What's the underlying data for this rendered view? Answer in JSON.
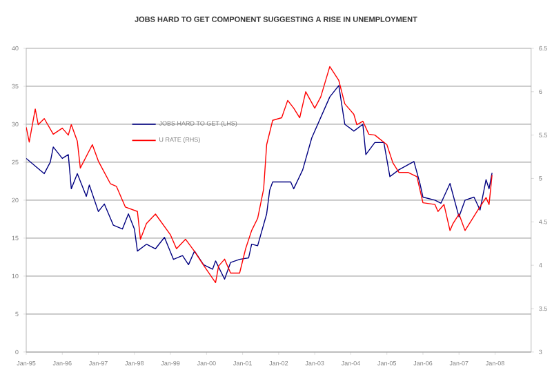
{
  "chart_data": {
    "type": "line",
    "title": "JOBS HARD TO GET COMPONENT SUGGESTING A RISE  IN UNEMPLOYMENT",
    "xlim": [
      "1995-01",
      "2009-01"
    ],
    "xticks": [
      {
        "value": "1995-01",
        "label": "Jan-95"
      },
      {
        "value": "1996-01",
        "label": "Jan-96"
      },
      {
        "value": "1997-01",
        "label": "Jan-97"
      },
      {
        "value": "1998-01",
        "label": "Jan-98"
      },
      {
        "value": "1999-01",
        "label": "Jan-99"
      },
      {
        "value": "2000-01",
        "label": "Jan-00"
      },
      {
        "value": "2001-01",
        "label": "Jan-01"
      },
      {
        "value": "2002-01",
        "label": "Jan-02"
      },
      {
        "value": "2003-01",
        "label": "Jan-03"
      },
      {
        "value": "2004-01",
        "label": "Jan-04"
      },
      {
        "value": "2005-01",
        "label": "Jan-05"
      },
      {
        "value": "2006-01",
        "label": "Jan-06"
      },
      {
        "value": "2007-01",
        "label": "Jan-07"
      },
      {
        "value": "2008-01",
        "label": "Jan-08"
      }
    ],
    "ylim": [
      0,
      40
    ],
    "yticks": [
      0,
      5,
      10,
      15,
      20,
      25,
      30,
      35,
      40
    ],
    "y2lim": [
      3,
      6.5
    ],
    "y2ticks": [
      3,
      3.5,
      4,
      4.5,
      5,
      5.5,
      6,
      6.5
    ],
    "grid": "y",
    "legend": "top left",
    "series": [
      {
        "name": "JOBS HARD TO GET (LHS)",
        "color": "#000080",
        "x": [
          "1995-01",
          "1995-04",
          "1995-07",
          "1995-09",
          "1995-10",
          "1996-01",
          "1996-03",
          "1996-04",
          "1996-06",
          "1996-09",
          "1996-10",
          "1997-01",
          "1997-03",
          "1997-06",
          "1997-09",
          "1997-11",
          "1998-01",
          "1998-02",
          "1998-05",
          "1998-08",
          "1998-11",
          "1999-02",
          "1999-05",
          "1999-07",
          "1999-09",
          "1999-12",
          "2000-03",
          "2000-04",
          "2000-07",
          "2000-09",
          "2000-12",
          "2001-03",
          "2001-04",
          "2001-06",
          "2001-09",
          "2001-10",
          "2001-11",
          "2002-05",
          "2002-06",
          "2002-09",
          "2002-12",
          "2003-03",
          "2003-06",
          "2003-09",
          "2003-11",
          "2004-02",
          "2004-05",
          "2004-06",
          "2004-09",
          "2004-12",
          "2005-02",
          "2005-05",
          "2005-10",
          "2005-12",
          "2006-01",
          "2006-05",
          "2006-07",
          "2006-10",
          "2007-01",
          "2007-03",
          "2007-06",
          "2007-08",
          "2007-10",
          "2007-11",
          "2007-12"
        ],
        "values": [
          25.5,
          24.5,
          23.5,
          25,
          27,
          25.5,
          26,
          21.5,
          23.5,
          20.5,
          22,
          18.5,
          19.5,
          16.7,
          16.2,
          18.2,
          16.2,
          13.3,
          14.2,
          13.6,
          15.1,
          12.2,
          12.7,
          11.5,
          13.3,
          11.5,
          10.9,
          12,
          9.6,
          11.8,
          12.2,
          12.4,
          14.2,
          14,
          18.2,
          21.3,
          22.4,
          22.4,
          21.5,
          24,
          28.2,
          30.9,
          33.6,
          35.1,
          30,
          29.1,
          30,
          26,
          27.6,
          27.6,
          23.1,
          24,
          25.1,
          22.2,
          20.4,
          20,
          19.6,
          22.2,
          17.8,
          20,
          20.4,
          18.7,
          22.7,
          21.5,
          23.6
        ]
      },
      {
        "name": "U RATE (RHS)",
        "color": "#ff0000",
        "axis": "y2",
        "x": [
          "1995-01",
          "1995-02",
          "1995-04",
          "1995-05",
          "1995-07",
          "1995-10",
          "1996-01",
          "1996-03",
          "1996-04",
          "1996-06",
          "1996-07",
          "1996-11",
          "1997-01",
          "1997-05",
          "1997-07",
          "1997-10",
          "1998-02",
          "1998-03",
          "1998-05",
          "1998-08",
          "1999-01",
          "1999-03",
          "1999-06",
          "1999-09",
          "1999-12",
          "2000-04",
          "2000-05",
          "2000-07",
          "2000-09",
          "2000-12",
          "2001-02",
          "2001-04",
          "2001-06",
          "2001-08",
          "2001-09",
          "2001-11",
          "2002-02",
          "2002-04",
          "2002-06",
          "2002-08",
          "2002-10",
          "2003-01",
          "2003-03",
          "2003-06",
          "2003-09",
          "2003-11",
          "2004-02",
          "2004-03",
          "2004-05",
          "2004-07",
          "2004-09",
          "2005-01",
          "2005-03",
          "2005-05",
          "2005-08",
          "2005-11",
          "2006-01",
          "2006-05",
          "2006-06",
          "2006-08",
          "2006-10",
          "2006-11",
          "2007-01",
          "2007-03",
          "2007-05",
          "2007-07",
          "2007-10",
          "2007-11",
          "2007-12"
        ],
        "values": [
          5.59,
          5.42,
          5.8,
          5.62,
          5.69,
          5.51,
          5.58,
          5.5,
          5.62,
          5.43,
          5.12,
          5.39,
          5.2,
          4.94,
          4.91,
          4.67,
          4.62,
          4.3,
          4.48,
          4.59,
          4.35,
          4.19,
          4.3,
          4.16,
          4.0,
          3.8,
          3.99,
          4.07,
          3.91,
          3.91,
          4.19,
          4.4,
          4.54,
          4.88,
          5.39,
          5.67,
          5.7,
          5.9,
          5.81,
          5.7,
          6.0,
          5.81,
          5.94,
          6.29,
          6.13,
          5.86,
          5.74,
          5.62,
          5.66,
          5.51,
          5.5,
          5.39,
          5.18,
          5.07,
          5.07,
          5.02,
          4.72,
          4.7,
          4.62,
          4.7,
          4.4,
          4.48,
          4.59,
          4.4,
          4.51,
          4.62,
          4.78,
          4.7,
          5.04
        ]
      }
    ]
  }
}
